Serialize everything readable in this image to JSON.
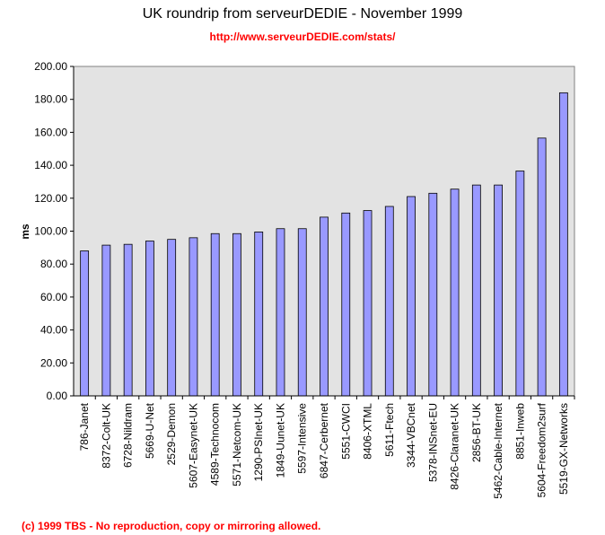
{
  "title": "UK roundrip from serveurDEDIE - November 1999",
  "subtitle": "http://www.serveurDEDIE.com/stats/",
  "footer": "(c) 1999 TBS - No reproduction, copy or mirroring allowed.",
  "colors": {
    "plot_background": "#e3e3e3",
    "bar_fill": "#9999ff",
    "bar_stroke": "#000000",
    "subtitle": "#ff0000",
    "footer": "#ff0000"
  },
  "chart_data": {
    "type": "bar",
    "title": "UK roundrip from serveurDEDIE - November 1999",
    "subtitle": "http://www.serveurDEDIE.com/stats/",
    "xlabel": "",
    "ylabel": "ms",
    "ylim": [
      0,
      200
    ],
    "yticks": [
      "0.00",
      "20.00",
      "40.00",
      "60.00",
      "80.00",
      "100.00",
      "120.00",
      "140.00",
      "160.00",
      "180.00",
      "200.00"
    ],
    "grid": false,
    "legend": "none",
    "categories": [
      "786-Janet",
      "8372-Colt-UK",
      "6728-Nildram",
      "5669-U-Net",
      "2529-Demon",
      "5607-Easynet-UK",
      "4589-Technocom",
      "5571-Netcom-UK",
      "1290-PSInet-UK",
      "1849-Uunet-UK",
      "5597-Intensive",
      "6847-Cerbernet",
      "5551-CWCI",
      "8406-XTML",
      "5611-Ftech",
      "3344-VBCnet",
      "5378-INSnet-EU",
      "8426-Claranet-UK",
      "2856-BT-UK",
      "5462-Cable-Internet",
      "8851-Inweb",
      "5604-Freedom2surf",
      "5519-GX-Networks"
    ],
    "values": [
      88,
      91.5,
      92,
      94,
      95,
      96,
      98.5,
      98.5,
      99.5,
      101.5,
      101.5,
      108.5,
      111,
      112.5,
      115,
      121,
      123,
      125.5,
      128,
      128,
      136.5,
      156.5,
      184
    ]
  }
}
